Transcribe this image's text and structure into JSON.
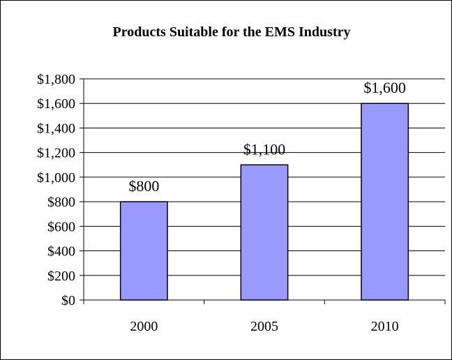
{
  "chart_data": {
    "type": "bar",
    "title": "Products Suitable for the EMS Industry",
    "xlabel": "",
    "ylabel": "",
    "categories": [
      "2000",
      "2005",
      "2010"
    ],
    "values": [
      800,
      1100,
      1600
    ],
    "data_labels": [
      "$800",
      "$1,100",
      "$1,600"
    ],
    "ylim": [
      0,
      1800
    ],
    "y_ticks": [
      0,
      200,
      400,
      600,
      800,
      1000,
      1200,
      1400,
      1600,
      1800
    ],
    "y_tick_labels": [
      "$0",
      "$200",
      "$400",
      "$600",
      "$800",
      "$1,000",
      "$1,200",
      "$1,400",
      "$1,600",
      "$1,800"
    ],
    "grid": true,
    "legend": "none",
    "bar_color": "#9999ff",
    "bar_edge_color": "#000000"
  }
}
